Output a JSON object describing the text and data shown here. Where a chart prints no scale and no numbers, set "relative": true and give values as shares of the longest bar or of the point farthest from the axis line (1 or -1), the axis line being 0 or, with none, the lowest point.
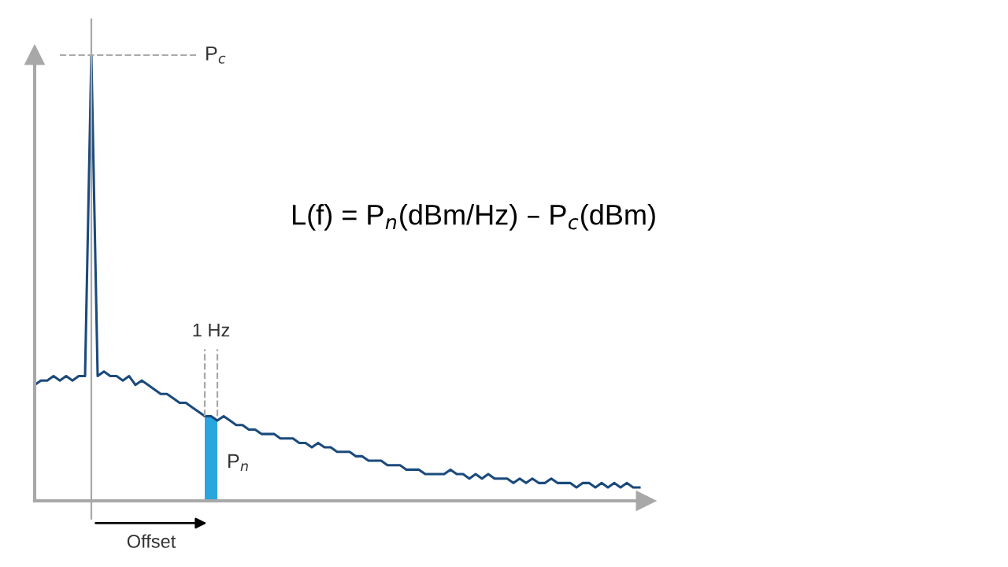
{
  "chart_data": {
    "type": "line",
    "relative": true,
    "marker": "none",
    "line_style": "solid",
    "categories": [
      null,
      null,
      null,
      null,
      null,
      null,
      null,
      null,
      null,
      null,
      null,
      null,
      null,
      null,
      null,
      null,
      null,
      null,
      null,
      null,
      null,
      null,
      null,
      null,
      null,
      null,
      null,
      null,
      null,
      null,
      null,
      null,
      null,
      null,
      null,
      null,
      null,
      null,
      null,
      null,
      null,
      null,
      null,
      null,
      null,
      null,
      null,
      null,
      null,
      null,
      null,
      null,
      null,
      null,
      null,
      null,
      null,
      null,
      null,
      null,
      null,
      null,
      null,
      null,
      null,
      null,
      null,
      null,
      null,
      null,
      null,
      null,
      null,
      null,
      null,
      null,
      null,
      null,
      null,
      null,
      null,
      null,
      null,
      null,
      null,
      null,
      null,
      null,
      null,
      null,
      null,
      null,
      null,
      null,
      null,
      null,
      null
    ],
    "series": [
      {
        "color": "#1b4a7c",
        "values": [
          0.26,
          0.27,
          0.27,
          0.28,
          0.27,
          0.28,
          0.27,
          0.28,
          0.28,
          1.0,
          0.28,
          0.29,
          0.28,
          0.28,
          0.27,
          0.28,
          0.26,
          0.27,
          0.26,
          0.25,
          0.24,
          0.24,
          0.23,
          0.22,
          0.22,
          0.21,
          0.2,
          0.19,
          0.19,
          0.18,
          0.19,
          0.18,
          0.17,
          0.17,
          0.16,
          0.16,
          0.15,
          0.15,
          0.15,
          0.14,
          0.14,
          0.14,
          0.13,
          0.13,
          0.12,
          0.13,
          0.12,
          0.12,
          0.11,
          0.11,
          0.11,
          0.1,
          0.1,
          0.09,
          0.09,
          0.09,
          0.08,
          0.08,
          0.08,
          0.07,
          0.07,
          0.07,
          0.06,
          0.06,
          0.06,
          0.06,
          0.07,
          0.06,
          0.06,
          0.05,
          0.06,
          0.05,
          0.06,
          0.05,
          0.05,
          0.05,
          0.04,
          0.05,
          0.04,
          0.05,
          0.04,
          0.04,
          0.05,
          0.04,
          0.04,
          0.04,
          0.03,
          0.04,
          0.04,
          0.03,
          0.04,
          0.03,
          0.04,
          0.03,
          0.04,
          0.03,
          0.03
        ]
      },
      {
        "type": "area",
        "name": "P$_{n}$",
        "color": "#2aa6df",
        "values": [
          null,
          null,
          null,
          null,
          null,
          null,
          null,
          null,
          null,
          null,
          null,
          null,
          null,
          null,
          null,
          null,
          null,
          null,
          null,
          null,
          null,
          null,
          null,
          null,
          null,
          null,
          null,
          0.19,
          0.19,
          0.18,
          null,
          null,
          null,
          null,
          null,
          null,
          null,
          null,
          null,
          null,
          null,
          null,
          null,
          null,
          null,
          null,
          null,
          null,
          null,
          null,
          null,
          null,
          null,
          null,
          null,
          null,
          null,
          null,
          null,
          null,
          null,
          null,
          null,
          null,
          null,
          null,
          null,
          null,
          null,
          null,
          null,
          null,
          null,
          null,
          null,
          null,
          null,
          null,
          null,
          null,
          null,
          null,
          null,
          null,
          null,
          null,
          null,
          null,
          null,
          null,
          null,
          null,
          null,
          null,
          null,
          null,
          null
        ]
      }
    ],
    "ref_lines": [
      {
        "axis": "y",
        "value": 1.0,
        "label": "P$_{c}$",
        "color": "#aaaaaa",
        "line_style": "dashed"
      }
    ],
    "annotations": [
      "L(f) = P$_{n}$(dBm/Hz) – P$_{c}$(dBm)",
      "1 Hz",
      "Offset"
    ]
  }
}
